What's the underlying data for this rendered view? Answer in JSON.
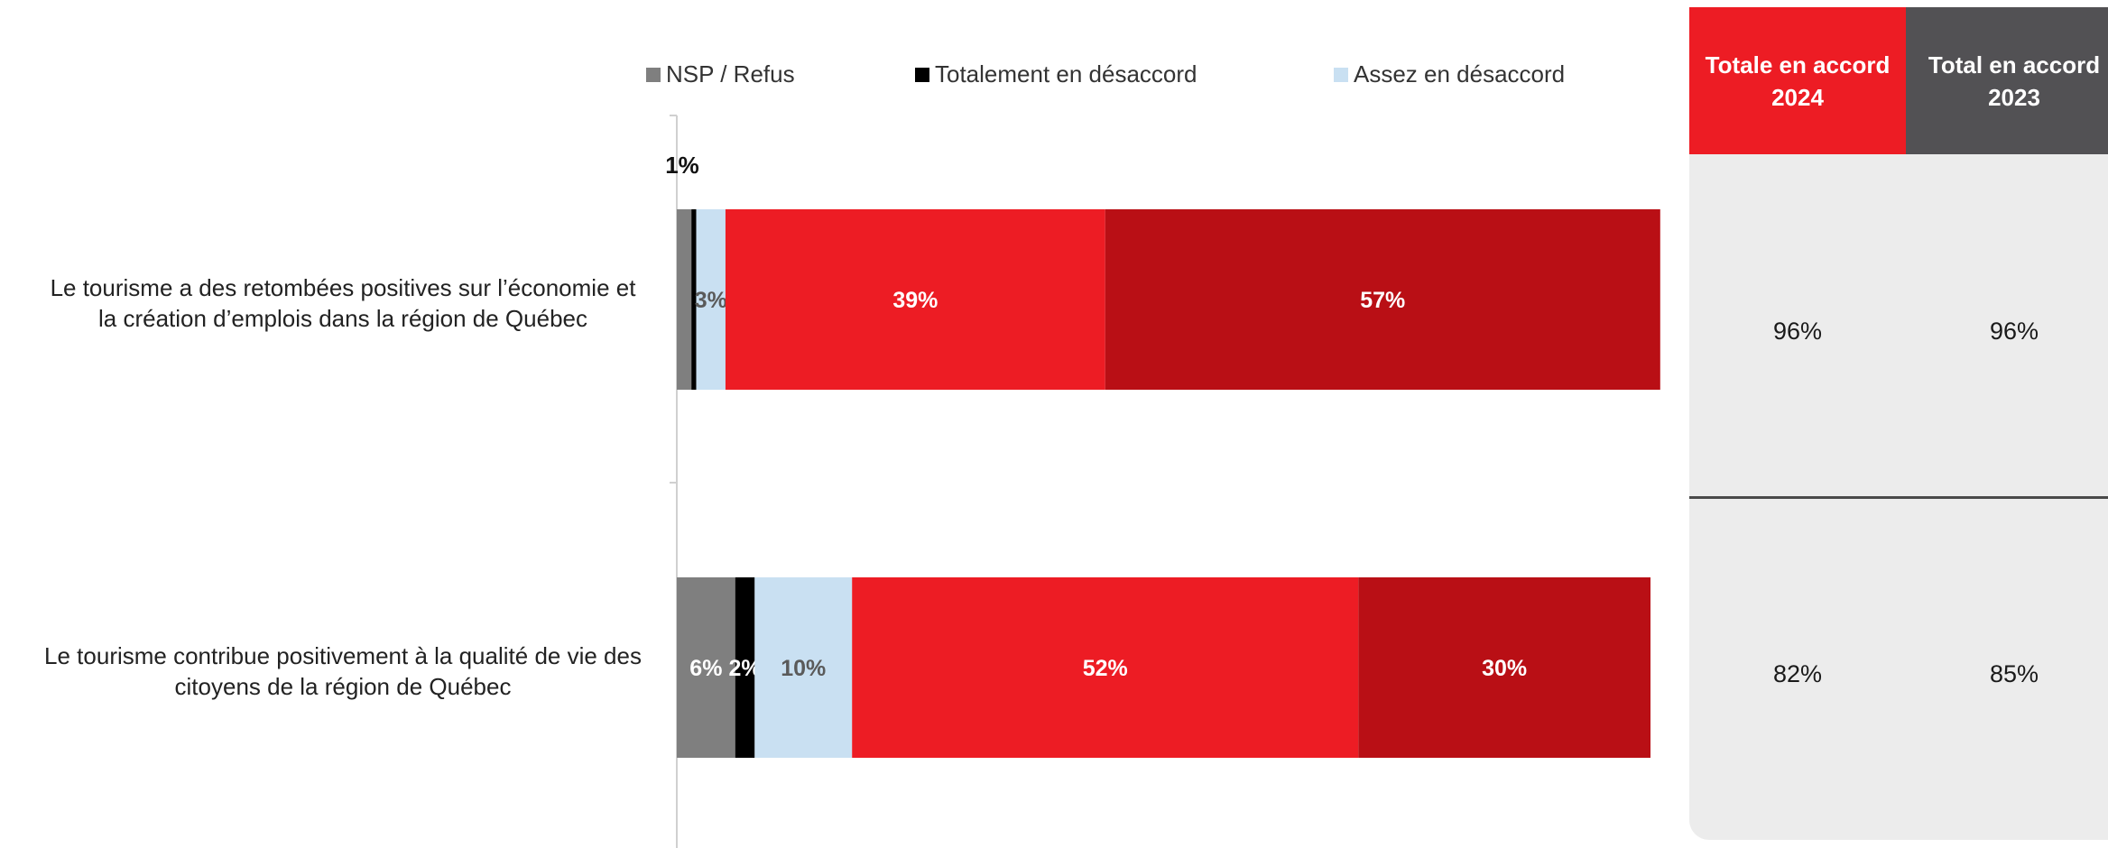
{
  "colors": {
    "nsp": "#7f7f7f",
    "tot_desaccord": "#000000",
    "assez_desaccord": "#c9e0f2",
    "assez_accord": "#ed1c24",
    "tot_accord": "#b90f15",
    "header_2024": "#ed1c24",
    "header_2023": "#525154"
  },
  "chart_data": {
    "type": "bar",
    "orientation": "horizontal",
    "stacked": true,
    "categories": [
      "Le tourisme a des retombées positives sur l’économie et la création d’emplois dans la région de Québec",
      "Le tourisme contribue positivement à la qualité de vie des citoyens de la région de Québec"
    ],
    "category_lines": [
      [
        "Le tourisme a des retombées positives sur l’économie et",
        "la création d’emplois dans la région de Québec"
      ],
      [
        "Le tourisme contribue positivement à la qualité de vie des",
        "citoyens de la région de Québec"
      ]
    ],
    "series": [
      {
        "name": "NSP / Refus",
        "values": [
          1.5,
          6
        ],
        "labels": [
          "",
          "6%"
        ]
      },
      {
        "name": "Totalement en désaccord",
        "values": [
          0.5,
          2
        ],
        "labels": [
          "1%",
          "2%"
        ]
      },
      {
        "name": "Assez en désaccord",
        "values": [
          3,
          10
        ],
        "labels": [
          "3%",
          "10%"
        ]
      },
      {
        "name": "",
        "values": [
          39,
          52
        ],
        "labels": [
          "39%",
          "52%"
        ]
      },
      {
        "name": "",
        "values": [
          57,
          30
        ],
        "labels": [
          "57%",
          "30%"
        ]
      }
    ],
    "legend": {
      "placement": "top",
      "entries": [
        "NSP / Refus",
        "Totalement en désaccord",
        "Assez en désaccord"
      ]
    },
    "xlim": [
      0,
      100
    ],
    "grid": false
  },
  "summary": {
    "headers": [
      {
        "line1": "Totale en accord",
        "line2": "2024"
      },
      {
        "line1": "Total en accord",
        "line2": "2023"
      }
    ],
    "rows": [
      {
        "v2024": "96%",
        "v2023": "96%"
      },
      {
        "v2024": "82%",
        "v2023": "85%"
      }
    ]
  }
}
